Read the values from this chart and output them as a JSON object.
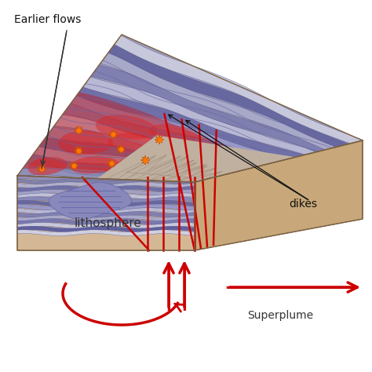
{
  "bg_color": "#ffffff",
  "lith_tan": "#d4b896",
  "lith_tan_dark": "#c8a87a",
  "lith_tan_side": "#c0a070",
  "purple_base": "#9090bb",
  "layer_colors": [
    "#8888b8",
    "#9898c8",
    "#7878a8",
    "#b0b0cc",
    "#6868a0",
    "#a0a0c4",
    "#8080b0",
    "#c0c0d8",
    "#7070a8",
    "#9090bc"
  ],
  "red_hot": "#cc1111",
  "red_glow": "#dd3333",
  "mountain_light": "#c8b8a8",
  "mountain_dark": "#b0a090",
  "dike_color": "#cc0000",
  "arrow_color": "#cc0000",
  "intrusion_color": "#8888bb",
  "label_lith": "lithosphere",
  "label_dikes": "dikes",
  "label_superplume": "Superplume",
  "label_flows": "Earlier flows",
  "wave_color": "#6666a0",
  "edge_color": "#555588"
}
